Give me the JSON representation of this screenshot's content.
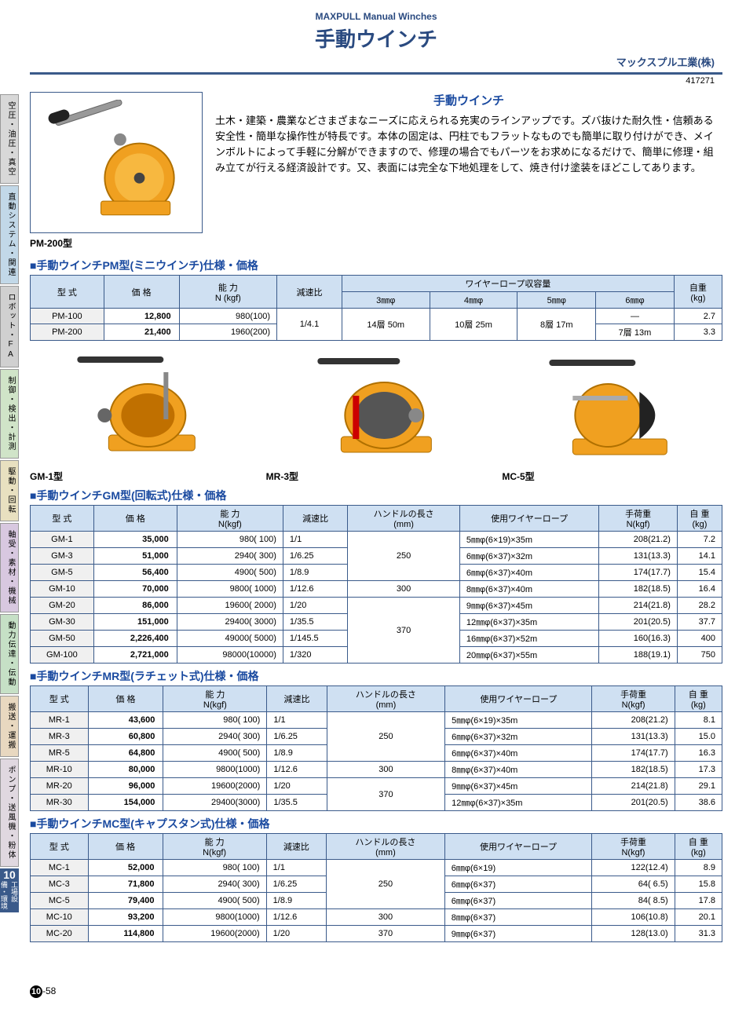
{
  "header": {
    "subtitle": "MAXPULL Manual Winches",
    "title": "手動ウインチ",
    "company": "マックスプル工業(株)",
    "code": "417271"
  },
  "side_tabs": [
    {
      "label": "空圧・油圧・真空",
      "bg": "#d8d8d8"
    },
    {
      "label": "直動システム・関連",
      "bg": "#c2d8e8"
    },
    {
      "label": "ロボット・FA",
      "bg": "#d0d0d0"
    },
    {
      "label": "制御・検出・計測",
      "bg": "#d0e4c8"
    },
    {
      "label": "駆動・回転",
      "bg": "#e8e0c0"
    },
    {
      "label": "軸受・素材・機械",
      "bg": "#d8c8e0"
    },
    {
      "label": "動力伝達・伝動",
      "bg": "#c6e0c6"
    },
    {
      "label": "搬送・運搬",
      "bg": "#e8d8c0"
    },
    {
      "label": "ポンプ・送風機・粉体",
      "bg": "#e0d8e0"
    }
  ],
  "side_badge": {
    "num": "10",
    "text": "工場設備・環境"
  },
  "intro": {
    "product_caption": "PM-200型",
    "heading": "手動ウインチ",
    "body": "土木・建築・農業などさまざまなニーズに応えられる充実のラインアップです。ズバ抜けた耐久性・信頼ある安全性・簡単な操作性が特長です。本体の固定は、円柱でもフラットなものでも簡単に取り付けができ、メインボルトによって手軽に分解ができますので、修理の場合でもパーツをお求めになるだけで、簡単に修理・組み立てが行える経済設計です。又、表面には完全な下地処理をして、焼き付け塗装をほどこしてあります。"
  },
  "image_row": [
    {
      "caption": "GM-1型"
    },
    {
      "caption": "MR-3型"
    },
    {
      "caption": "MC-5型"
    }
  ],
  "pm_section": {
    "title": "■手動ウインチPM型(ミニウインチ)仕様・価格",
    "headers": {
      "model": "型 式",
      "price": "価 格",
      "capacity": "能 力\nN (kgf)",
      "ratio": "減速比",
      "wire": "ワイヤーロープ収容量",
      "d3": "3㎜φ",
      "d4": "4㎜φ",
      "d5": "5㎜φ",
      "d6": "6㎜φ",
      "wt": "自重\n(kg)"
    },
    "rows": [
      {
        "model": "PM-100",
        "price": "12,800",
        "cap": "980(100)",
        "ratio": "1/4.1",
        "d3": "14層 50m",
        "d4": "10層 25m",
        "d5": "8層 17m",
        "d6": "—",
        "wt": "2.7"
      },
      {
        "model": "PM-200",
        "price": "21,400",
        "cap": "1960(200)",
        "ratio": "",
        "d3": "",
        "d4": "",
        "d5": "",
        "d6": "7層 13m",
        "wt": "3.3"
      }
    ]
  },
  "gm_section": {
    "title": "■手動ウインチGM型(回転式)仕様・価格",
    "headers": {
      "model": "型 式",
      "price": "価 格",
      "cap": "能 力\nN(kgf)",
      "ratio": "減速比",
      "handle": "ハンドルの長さ\n(mm)",
      "wire": "使用ワイヤーロープ",
      "load": "手荷重\nN(kgf)",
      "wt": "自 重\n(kg)"
    },
    "rows": [
      {
        "model": "GM-1",
        "price": "35,000",
        "cap": "980(  100)",
        "ratio": "1/1",
        "handle": "250",
        "wire": "5㎜φ(6×19)×35m",
        "load": "208(21.2)",
        "wt": "7.2"
      },
      {
        "model": "GM-3",
        "price": "51,000",
        "cap": "2940(  300)",
        "ratio": "1/6.25",
        "handle": "",
        "wire": "6㎜φ(6×37)×32m",
        "load": "131(13.3)",
        "wt": "14.1"
      },
      {
        "model": "GM-5",
        "price": "56,400",
        "cap": "4900(  500)",
        "ratio": "1/8.9",
        "handle": "",
        "wire": "6㎜φ(6×37)×40m",
        "load": "174(17.7)",
        "wt": "15.4"
      },
      {
        "model": "GM-10",
        "price": "70,000",
        "cap": "9800( 1000)",
        "ratio": "1/12.6",
        "handle": "300",
        "wire": "8㎜φ(6×37)×40m",
        "load": "182(18.5)",
        "wt": "16.4"
      },
      {
        "model": "GM-20",
        "price": "86,000",
        "cap": "19600( 2000)",
        "ratio": "1/20",
        "handle": "370",
        "wire": "9㎜φ(6×37)×45m",
        "load": "214(21.8)",
        "wt": "28.2"
      },
      {
        "model": "GM-30",
        "price": "151,000",
        "cap": "29400( 3000)",
        "ratio": "1/35.5",
        "handle": "",
        "wire": "12㎜φ(6×37)×35m",
        "load": "201(20.5)",
        "wt": "37.7"
      },
      {
        "model": "GM-50",
        "price": "2,226,400",
        "cap": "49000( 5000)",
        "ratio": "1/145.5",
        "handle": "",
        "wire": "16㎜φ(6×37)×52m",
        "load": "160(16.3)",
        "wt": "400"
      },
      {
        "model": "GM-100",
        "price": "2,721,000",
        "cap": "98000(10000)",
        "ratio": "1/320",
        "handle": "",
        "wire": "20㎜φ(6×37)×55m",
        "load": "188(19.1)",
        "wt": "750"
      }
    ]
  },
  "mr_section": {
    "title": "■手動ウインチMR型(ラチェット式)仕様・価格",
    "rows": [
      {
        "model": "MR-1",
        "price": "43,600",
        "cap": "980( 100)",
        "ratio": "1/1",
        "handle": "250",
        "wire": "5㎜φ(6×19)×35m",
        "load": "208(21.2)",
        "wt": "8.1"
      },
      {
        "model": "MR-3",
        "price": "60,800",
        "cap": "2940( 300)",
        "ratio": "1/6.25",
        "handle": "",
        "wire": "6㎜φ(6×37)×32m",
        "load": "131(13.3)",
        "wt": "15.0"
      },
      {
        "model": "MR-5",
        "price": "64,800",
        "cap": "4900( 500)",
        "ratio": "1/8.9",
        "handle": "",
        "wire": "6㎜φ(6×37)×40m",
        "load": "174(17.7)",
        "wt": "16.3"
      },
      {
        "model": "MR-10",
        "price": "80,000",
        "cap": "9800(1000)",
        "ratio": "1/12.6",
        "handle": "300",
        "wire": "8㎜φ(6×37)×40m",
        "load": "182(18.5)",
        "wt": "17.3"
      },
      {
        "model": "MR-20",
        "price": "96,000",
        "cap": "19600(2000)",
        "ratio": "1/20",
        "handle": "370",
        "wire": "9㎜φ(6×37)×45m",
        "load": "214(21.8)",
        "wt": "29.1"
      },
      {
        "model": "MR-30",
        "price": "154,000",
        "cap": "29400(3000)",
        "ratio": "1/35.5",
        "handle": "",
        "wire": "12㎜φ(6×37)×35m",
        "load": "201(20.5)",
        "wt": "38.6"
      }
    ]
  },
  "mc_section": {
    "title": "■手動ウインチMC型(キャプスタン式)仕様・価格",
    "rows": [
      {
        "model": "MC-1",
        "price": "52,000",
        "cap": "980( 100)",
        "ratio": "1/1",
        "handle": "250",
        "wire": "6㎜φ(6×19)",
        "load": "122(12.4)",
        "wt": "8.9"
      },
      {
        "model": "MC-3",
        "price": "71,800",
        "cap": "2940( 300)",
        "ratio": "1/6.25",
        "handle": "",
        "wire": "6㎜φ(6×37)",
        "load": "64( 6.5)",
        "wt": "15.8"
      },
      {
        "model": "MC-5",
        "price": "79,400",
        "cap": "4900( 500)",
        "ratio": "1/8.9",
        "handle": "",
        "wire": "6㎜φ(6×37)",
        "load": "84( 8.5)",
        "wt": "17.8"
      },
      {
        "model": "MC-10",
        "price": "93,200",
        "cap": "9800(1000)",
        "ratio": "1/12.6",
        "handle": "300",
        "wire": "8㎜φ(6×37)",
        "load": "106(10.8)",
        "wt": "20.1"
      },
      {
        "model": "MC-20",
        "price": "114,800",
        "cap": "19600(2000)",
        "ratio": "1/20",
        "handle": "370",
        "wire": "9㎜φ(6×37)",
        "load": "128(13.0)",
        "wt": "31.3"
      }
    ]
  },
  "page_number": {
    "section": "❿",
    "page": "-58"
  },
  "svg_colors": {
    "body": "#f0a020",
    "dark": "#555",
    "handle": "#444"
  }
}
